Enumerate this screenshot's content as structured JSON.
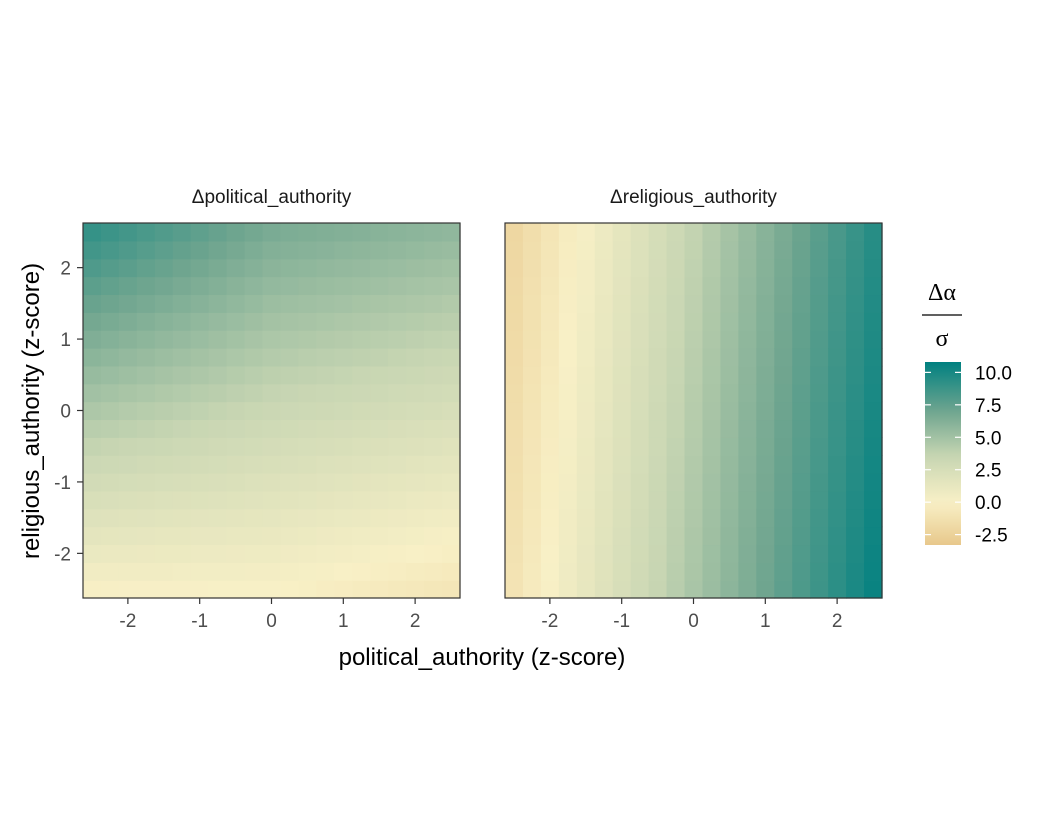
{
  "chart_data": {
    "type": "heatmap",
    "xlabel": "political_authority (z-score)",
    "ylabel": "religious_authority (z-score)",
    "xlim": [
      -2.625,
      2.625
    ],
    "ylim": [
      -2.625,
      2.625
    ],
    "x_ticks": [
      "-2",
      "-1",
      "0",
      "1",
      "2"
    ],
    "y_ticks": [
      "-2",
      "-1",
      "0",
      "1",
      "2"
    ],
    "grid_resolution": [
      21,
      21
    ],
    "grid": false,
    "legend": {
      "placement": "right",
      "title_numerator": "Δα",
      "title_denominator": "σ",
      "ticks": [
        "10.0",
        "7.5",
        "5.0",
        "2.5",
        "0.0",
        "-2.5"
      ],
      "range": [
        -3.3,
        10.8
      ],
      "colors": [
        "#E8C88C",
        "#F8F0C6",
        "#C8D6B3",
        "#6FA58F",
        "#008080"
      ]
    },
    "panels": [
      {
        "title": "Δpolitical_authority",
        "surface": {
          "description_values": "value(x,y) ~ 3.3 + 1.3*y + 0.5*(y+2.6)*max(0,-x)/2.6 - 0.9*max(0,x)/2.6",
          "corners": {
            "bottom_left": -0.1,
            "bottom_right": -2.8,
            "top_left": 8.6,
            "top_right": 6.0
          }
        }
      },
      {
        "title": "Δreligious_authority",
        "surface": {
          "description_values": "value(x,y) ~ 4.2 + 2.3*x - 0.2*y",
          "corners": {
            "left": -2.9,
            "right": 10.8
          }
        }
      }
    ]
  }
}
